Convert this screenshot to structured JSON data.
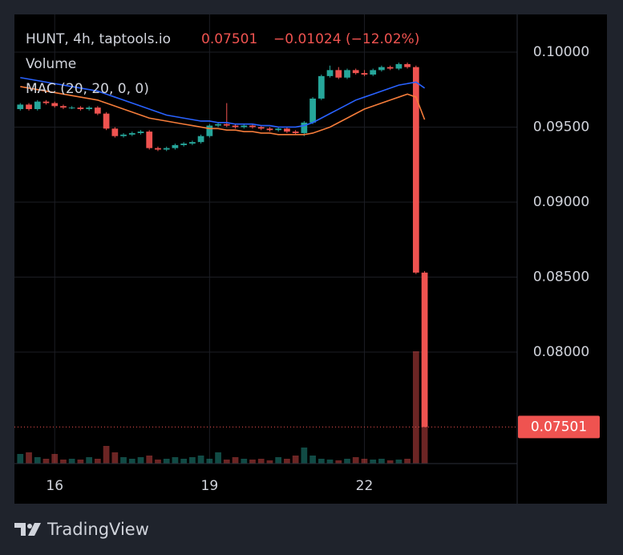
{
  "chart_data": {
    "type": "candlestick",
    "title": "HUNT, 4h, taptools.io",
    "last_price": 0.07501,
    "change": {
      "value": -0.01024,
      "label": "−0.01024"
    },
    "change_pct": {
      "value": -12.02,
      "label": "(−12.02%)"
    },
    "volume_label": "Volume",
    "indicator_label": "MAC (20, 20, 0, 0)",
    "footer": "TradingView",
    "up_color": "#26a69a",
    "down_color": "#ef5350",
    "x": [
      15.333,
      15.5,
      15.667,
      15.833,
      16,
      16.167,
      16.333,
      16.5,
      16.667,
      16.833,
      17,
      17.167,
      17.333,
      17.5,
      17.667,
      17.833,
      18,
      18.167,
      18.333,
      18.5,
      18.667,
      18.833,
      19,
      19.167,
      19.333,
      19.5,
      19.667,
      19.833,
      20,
      20.167,
      20.333,
      20.5,
      20.667,
      20.833,
      21,
      21.167,
      21.333,
      21.5,
      21.667,
      21.833,
      22,
      22.167,
      22.333,
      22.5,
      22.667,
      22.833,
      23,
      23.167
    ],
    "open": [
      0.0962,
      0.0965,
      0.0962,
      0.0967,
      0.0966,
      0.0964,
      0.0963,
      0.0963,
      0.0962,
      0.0963,
      0.0959,
      0.0949,
      0.0944,
      0.0945,
      0.0946,
      0.0947,
      0.0936,
      0.0935,
      0.0936,
      0.0938,
      0.0939,
      0.094,
      0.0944,
      0.0951,
      0.0952,
      0.0951,
      0.095,
      0.0951,
      0.095,
      0.0949,
      0.0948,
      0.0949,
      0.0947,
      0.0946,
      0.0953,
      0.0969,
      0.0984,
      0.0988,
      0.0983,
      0.0988,
      0.0986,
      0.0985,
      0.0988,
      0.099,
      0.0989,
      0.0992,
      0.099,
      0.0853
    ],
    "high": [
      0.0966,
      0.0966,
      0.0968,
      0.0968,
      0.0967,
      0.0965,
      0.0964,
      0.0964,
      0.0964,
      0.0964,
      0.096,
      0.095,
      0.0946,
      0.0947,
      0.0948,
      0.0948,
      0.0937,
      0.0937,
      0.0939,
      0.094,
      0.0941,
      0.0945,
      0.0952,
      0.0953,
      0.0966,
      0.0952,
      0.0952,
      0.0952,
      0.0951,
      0.095,
      0.095,
      0.095,
      0.0948,
      0.0954,
      0.097,
      0.0985,
      0.0991,
      0.099,
      0.0989,
      0.0989,
      0.0988,
      0.0989,
      0.0991,
      0.0991,
      0.0993,
      0.0993,
      0.0991,
      0.0854
    ],
    "low": [
      0.0961,
      0.0961,
      0.0961,
      0.0965,
      0.0963,
      0.0962,
      0.0962,
      0.0961,
      0.0961,
      0.0958,
      0.0948,
      0.0943,
      0.0943,
      0.0944,
      0.0945,
      0.0935,
      0.0934,
      0.0934,
      0.0935,
      0.0937,
      0.0938,
      0.0939,
      0.0943,
      0.095,
      0.095,
      0.0949,
      0.0949,
      0.0949,
      0.0948,
      0.0947,
      0.0947,
      0.0946,
      0.0945,
      0.0944,
      0.0952,
      0.0968,
      0.0983,
      0.0982,
      0.0982,
      0.0985,
      0.0984,
      0.0984,
      0.0987,
      0.0988,
      0.0988,
      0.0989,
      0.0852,
      0.07501
    ],
    "close": [
      0.0965,
      0.0962,
      0.0967,
      0.0966,
      0.0964,
      0.0963,
      0.0963,
      0.0962,
      0.0963,
      0.0959,
      0.0949,
      0.0944,
      0.0945,
      0.0946,
      0.0947,
      0.0936,
      0.0935,
      0.0936,
      0.0938,
      0.0939,
      0.094,
      0.0944,
      0.0951,
      0.0952,
      0.0951,
      0.095,
      0.0951,
      0.095,
      0.0949,
      0.0948,
      0.0949,
      0.0947,
      0.0946,
      0.0953,
      0.0969,
      0.0984,
      0.0988,
      0.0983,
      0.0988,
      0.0986,
      0.0985,
      0.0988,
      0.099,
      0.0989,
      0.0992,
      0.099,
      0.0853,
      0.07501
    ],
    "volume": [
      12,
      14,
      8,
      6,
      12,
      5,
      6,
      5,
      8,
      6,
      22,
      14,
      8,
      6,
      8,
      10,
      5,
      6,
      8,
      6,
      8,
      10,
      6,
      14,
      5,
      8,
      6,
      5,
      6,
      4,
      8,
      6,
      10,
      20,
      10,
      6,
      5,
      4,
      6,
      8,
      6,
      5,
      6,
      4,
      5,
      6,
      140,
      140
    ],
    "vlim": [
      0,
      560
    ],
    "ma_series": [
      {
        "color": "#2962ff",
        "values": [
          0.0983,
          0.0982,
          0.0981,
          0.098,
          0.0979,
          0.0978,
          0.0977,
          0.0976,
          0.0975,
          0.0974,
          0.0972,
          0.097,
          0.0968,
          0.0966,
          0.0964,
          0.0962,
          0.096,
          0.0958,
          0.0957,
          0.0956,
          0.0955,
          0.0954,
          0.0954,
          0.0953,
          0.0953,
          0.0952,
          0.0952,
          0.0952,
          0.0951,
          0.0951,
          0.095,
          0.095,
          0.095,
          0.0951,
          0.0953,
          0.0956,
          0.0959,
          0.0962,
          0.0965,
          0.0968,
          0.097,
          0.0972,
          0.0974,
          0.0976,
          0.0978,
          0.0979,
          0.098,
          0.0976
        ]
      },
      {
        "color": "#f57c3a",
        "values": [
          0.0977,
          0.0976,
          0.0975,
          0.0974,
          0.0973,
          0.0972,
          0.0971,
          0.097,
          0.0969,
          0.0968,
          0.0966,
          0.0964,
          0.0962,
          0.096,
          0.0958,
          0.0956,
          0.0955,
          0.0954,
          0.0953,
          0.0952,
          0.0951,
          0.095,
          0.0949,
          0.0949,
          0.0948,
          0.0948,
          0.0947,
          0.0947,
          0.0946,
          0.0946,
          0.0945,
          0.0945,
          0.0945,
          0.0945,
          0.0946,
          0.0948,
          0.095,
          0.0953,
          0.0956,
          0.0959,
          0.0962,
          0.0964,
          0.0966,
          0.0968,
          0.097,
          0.0972,
          0.097,
          0.0955
        ]
      }
    ],
    "xlim": [
      15.22,
      24.96
    ],
    "xticks": [
      16,
      19,
      22
    ],
    "ylim": [
      0.07257,
      0.10251
    ],
    "yticks": [
      {
        "value": 0.1,
        "label": "0.10000"
      },
      {
        "value": 0.095,
        "label": "0.09500"
      },
      {
        "value": 0.09,
        "label": "0.09000"
      },
      {
        "value": 0.085,
        "label": "0.08500"
      },
      {
        "value": 0.08,
        "label": "0.08000"
      }
    ],
    "grid": true
  }
}
